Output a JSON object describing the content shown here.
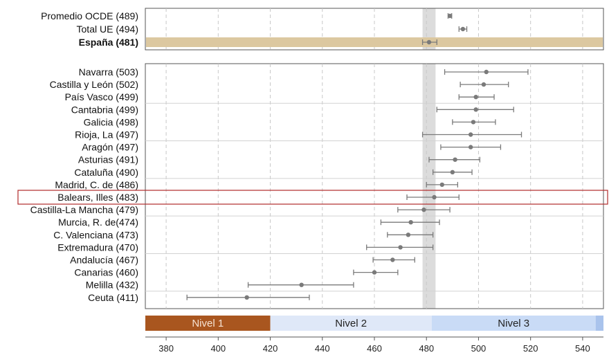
{
  "chart_data": {
    "type": "dot-range",
    "title": "",
    "xlabel": "",
    "ylabel": "",
    "xlim": [
      372,
      548
    ],
    "xticks": [
      380,
      400,
      420,
      440,
      460,
      480,
      500,
      520,
      540
    ],
    "grid": "vertical dashed",
    "reference_band": [
      478.5,
      483.5
    ],
    "summary_rows": [
      {
        "label": "Promedio OCDE (489)",
        "value": 489,
        "low": 488.3,
        "high": 489.7,
        "bold": false
      },
      {
        "label": "Total UE (494)",
        "value": 494,
        "low": 492.5,
        "high": 495.5,
        "bold": false
      },
      {
        "label": "España (481)",
        "value": 481,
        "low": 478.5,
        "high": 484,
        "bold": true,
        "highlight": true
      }
    ],
    "regions": [
      {
        "label": "Navarra (503)",
        "value": 503,
        "low": 487,
        "high": 519
      },
      {
        "label": "Castilla y León (502)",
        "value": 502,
        "low": 493,
        "high": 511.5
      },
      {
        "label": "País Vasco (499)",
        "value": 499,
        "low": 492.5,
        "high": 506
      },
      {
        "label": "Cantabria (499)",
        "value": 499,
        "low": 484,
        "high": 513.5
      },
      {
        "label": "Galicia (498)",
        "value": 498,
        "low": 490,
        "high": 506.5
      },
      {
        "label": "Rioja, La (497)",
        "value": 497,
        "low": 478.5,
        "high": 516.5
      },
      {
        "label": "Aragón (497)",
        "value": 497,
        "low": 485.5,
        "high": 508.5
      },
      {
        "label": "Asturias (491)",
        "value": 491,
        "low": 481,
        "high": 500.5
      },
      {
        "label": "Cataluña (490)",
        "value": 490,
        "low": 482.5,
        "high": 497.5
      },
      {
        "label": "Madrid, C. de (486)",
        "value": 486,
        "low": 480,
        "high": 492
      },
      {
        "label": "Balears, Illes (483)",
        "value": 483,
        "low": 472.5,
        "high": 492.5,
        "highlight": true
      },
      {
        "label": "Castilla-La Mancha (479)",
        "value": 479,
        "low": 469,
        "high": 489
      },
      {
        "label": "Murcia, R. de(474)",
        "value": 474,
        "low": 462.5,
        "high": 485
      },
      {
        "label": "C. Valenciana (473)",
        "value": 473,
        "low": 465,
        "high": 482.5
      },
      {
        "label": "Extremadura (470)",
        "value": 470,
        "low": 457,
        "high": 482.5
      },
      {
        "label": "Andalucía (467)",
        "value": 467,
        "low": 459.5,
        "high": 475.5
      },
      {
        "label": "Canarias  (460)",
        "value": 460,
        "low": 452,
        "high": 469
      },
      {
        "label": "Melilla (432)",
        "value": 432,
        "low": 411.5,
        "high": 452
      },
      {
        "label": "Ceuta (411)",
        "value": 411,
        "low": 388,
        "high": 435
      }
    ],
    "levels": [
      {
        "label": "Nivel 1",
        "from": 372,
        "to": 420,
        "color": "#a9561f",
        "text_color": "#f6e3d3"
      },
      {
        "label": "Nivel 2",
        "from": 420,
        "to": 482,
        "color": "#dfe8f8",
        "text_color": "#222222"
      },
      {
        "label": "Nivel 3",
        "from": 482,
        "to": 545,
        "color": "#c9dbf6",
        "text_color": "#222222"
      },
      {
        "label": "",
        "from": 545,
        "to": 548,
        "color": "#a9c3ec",
        "text_color": "#222222"
      }
    ],
    "colors": {
      "marker": "#7a7a7a",
      "errorbar": "#7a7a7a",
      "reference_band": "#dcdcdc",
      "highlight_fill": "#dcc8a0",
      "highlight_box": "#b02a2a",
      "grid": "#c8c8c8"
    }
  }
}
